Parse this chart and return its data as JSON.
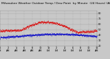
{
  "title": "Milwaukee Weather Outdoor Temp / Dew Point  by Minute  (24 Hours) (Alternate)",
  "bg_color": "#c8c8c8",
  "plot_bg_color": "#c8c8c8",
  "temp_color": "#dd0000",
  "dew_color": "#0000cc",
  "ylim": [
    20,
    85
  ],
  "yticks": [
    20,
    30,
    40,
    50,
    60,
    70,
    80
  ],
  "xlim": [
    0,
    1440
  ],
  "grid_color": "#999999",
  "title_fontsize": 3.2,
  "tick_fontsize": 2.5,
  "dot_size": 0.12,
  "num_vgrid": 13
}
